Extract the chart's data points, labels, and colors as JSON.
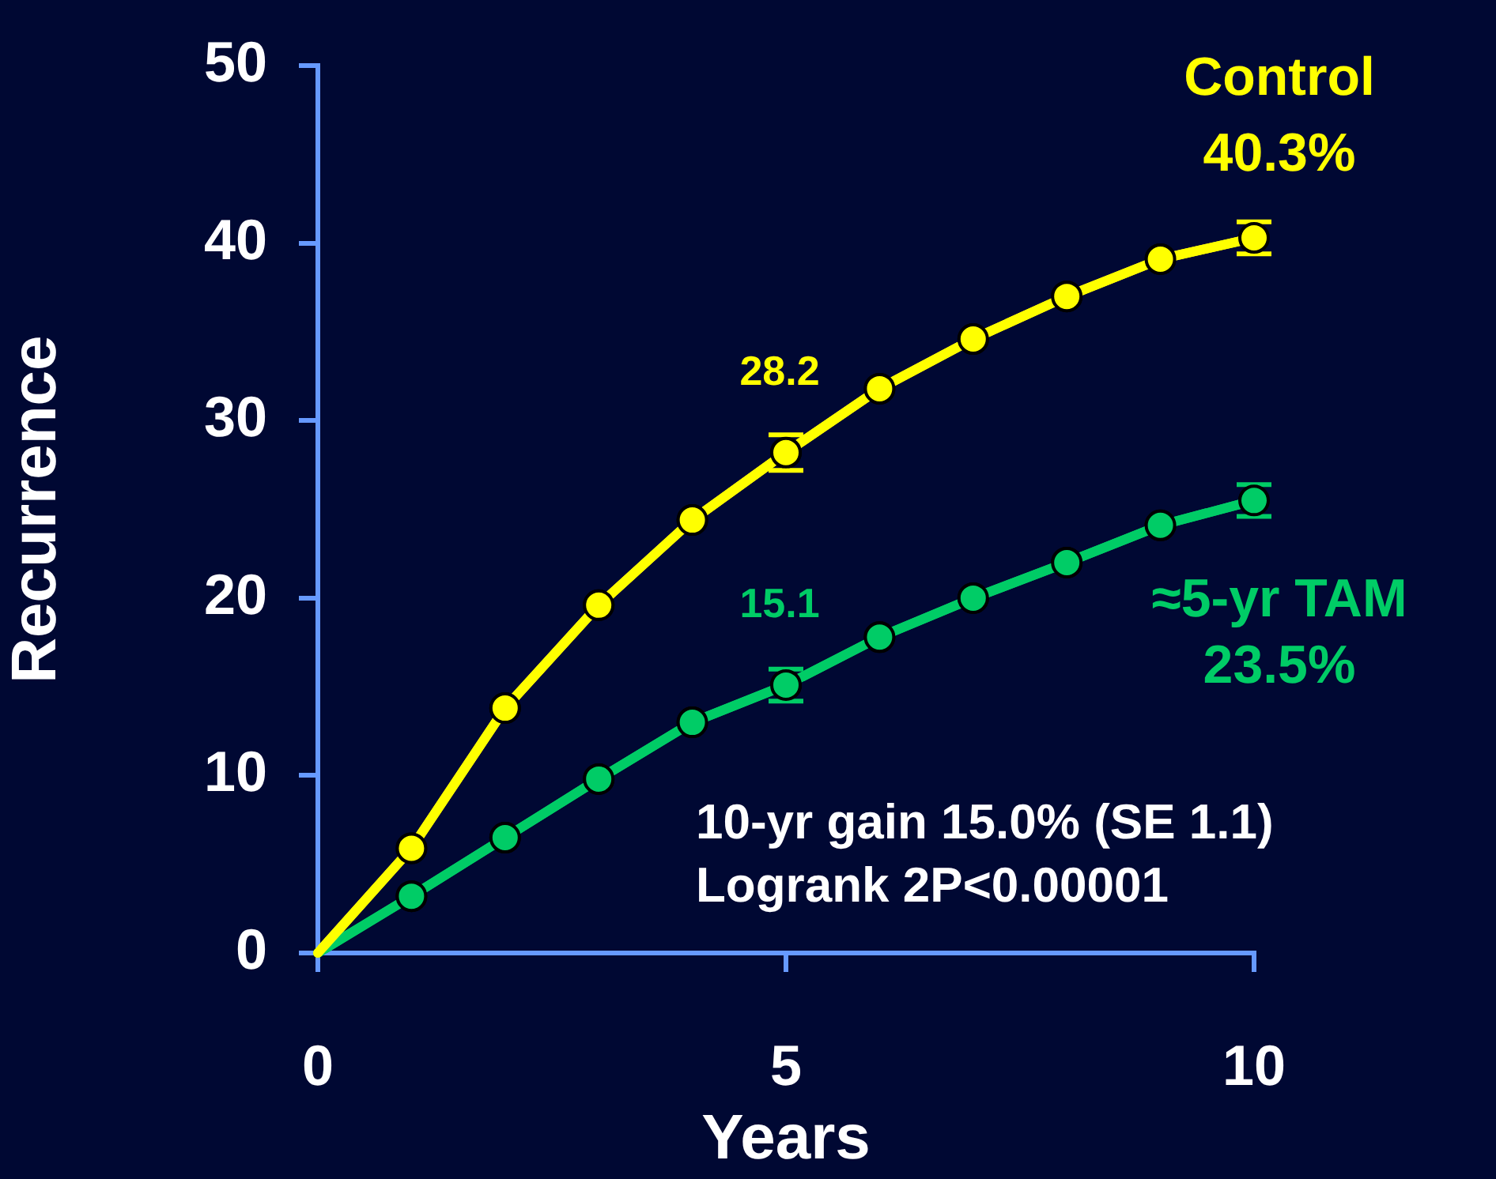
{
  "chart_data": {
    "type": "line",
    "xlabel": "Years",
    "ylabel": "Recurrence",
    "x": [
      0,
      1,
      2,
      3,
      4,
      5,
      6,
      7,
      8,
      9,
      10
    ],
    "series": [
      {
        "name": "Control",
        "color": "#ffff00",
        "values": [
          0,
          5.9,
          13.8,
          19.6,
          24.4,
          28.2,
          31.8,
          34.6,
          37.0,
          39.1,
          40.3
        ],
        "errors": [
          null,
          null,
          null,
          null,
          null,
          1.0,
          null,
          null,
          null,
          null,
          0.9
        ],
        "value_labels": [
          null,
          null,
          null,
          null,
          null,
          "28.2",
          null,
          null,
          null,
          null,
          null
        ]
      },
      {
        "name": "≈5-yr TAM",
        "color": "#00cc66",
        "values": [
          0,
          3.2,
          6.5,
          9.8,
          13.0,
          15.1,
          17.8,
          20.0,
          22.0,
          24.1,
          25.5
        ],
        "errors": [
          null,
          null,
          null,
          null,
          null,
          0.9,
          null,
          null,
          null,
          null,
          0.9
        ],
        "value_labels": [
          null,
          null,
          null,
          null,
          null,
          "15.1",
          null,
          null,
          null,
          null,
          null
        ]
      }
    ],
    "xlim": [
      0,
      10
    ],
    "xticks": [
      0,
      5,
      10
    ],
    "ylim": [
      0,
      50
    ],
    "yticks": [
      0,
      10,
      20,
      30,
      40,
      50
    ],
    "grid": false,
    "legend": false,
    "marker": "circle",
    "line_style": "solid",
    "annotations": [
      {
        "text": "40.3%",
        "x": 10,
        "y": 40.3
      },
      {
        "text": "23.5%",
        "x": 10,
        "y": 25.5
      },
      "10-yr gain 15.0% (SE 1.1)",
      "Logrank 2P<0.00001"
    ]
  }
}
